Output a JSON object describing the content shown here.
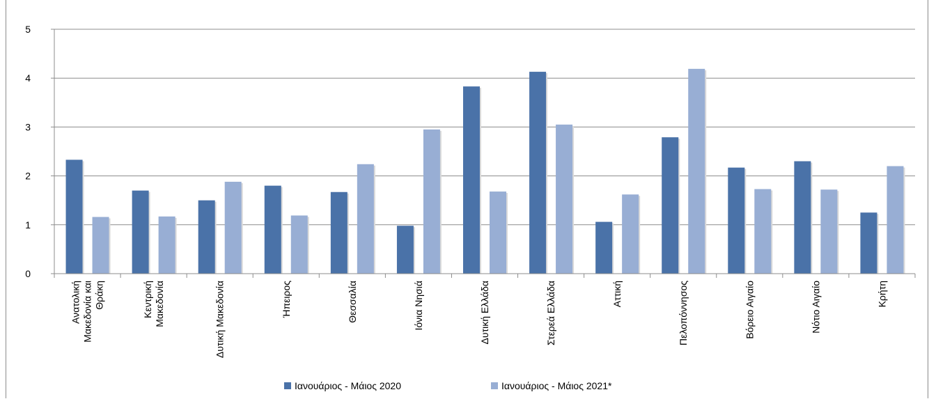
{
  "chart_data": {
    "type": "bar",
    "categories": [
      [
        "Ανατολική",
        "Μακεδονία και",
        "Θράκη"
      ],
      [
        "Κεντρική",
        "Μακεδονία"
      ],
      [
        "Δυτική Μακεδονία"
      ],
      [
        "Ήπειρος"
      ],
      [
        "Θεσσαλία"
      ],
      [
        "Ιόνια Νησιά"
      ],
      [
        "Δυτική Ελλάδα"
      ],
      [
        "Στερεά Ελλάδα"
      ],
      [
        "Αττική"
      ],
      [
        "Πελοπόννησος"
      ],
      [
        "Βόρειο Αιγαίο"
      ],
      [
        "Νότιο Αιγαίο"
      ],
      [
        "Κρήτη"
      ]
    ],
    "series": [
      {
        "name": "Ιανουάριος - Μάιος 2020",
        "color": "#4a72a8",
        "values": [
          2.33,
          1.7,
          1.5,
          1.8,
          1.67,
          0.98,
          3.83,
          4.13,
          1.06,
          2.79,
          2.17,
          2.3,
          1.25
        ]
      },
      {
        "name": "Ιανουάριος - Μάιος 2021*",
        "color": "#98aed4",
        "values": [
          1.16,
          1.17,
          1.88,
          1.19,
          2.24,
          2.95,
          1.68,
          3.05,
          1.62,
          4.19,
          1.73,
          1.72,
          2.2
        ]
      }
    ],
    "ylim": [
      0,
      5
    ],
    "yticks": [
      "0",
      "1",
      "2",
      "3",
      "4",
      "5"
    ],
    "grid": true,
    "legend": "bottom",
    "title": "",
    "xlabel": "",
    "ylabel": ""
  }
}
